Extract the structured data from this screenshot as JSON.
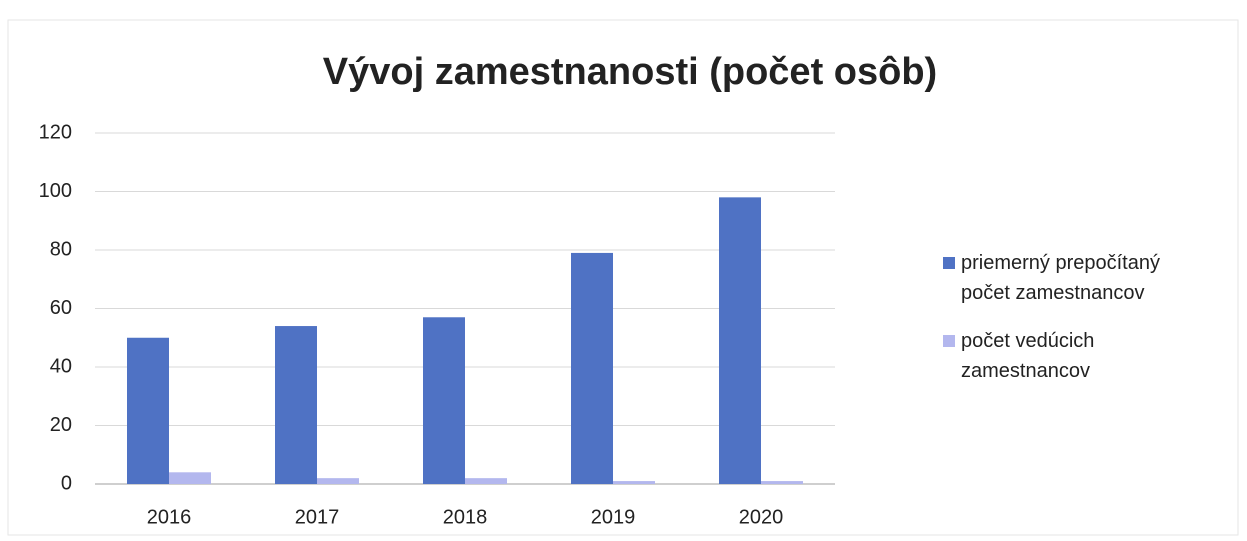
{
  "chart_data": {
    "type": "bar",
    "title": "Vývoj zamestnanosti (počet osôb)",
    "categories": [
      "2016",
      "2017",
      "2018",
      "2019",
      "2020"
    ],
    "series": [
      {
        "name": "priemerný prepočítaný počet zamestnancov",
        "color": "#4f72c4",
        "values": [
          50,
          54,
          57,
          79,
          98
        ]
      },
      {
        "name": "počet vedúcich zamestnancov",
        "color": "#b3b7ee",
        "values": [
          4,
          2,
          2,
          1,
          1
        ]
      }
    ],
    "ylim": [
      0,
      120
    ],
    "yticks": [
      0,
      20,
      40,
      60,
      80,
      100,
      120
    ],
    "grid": true,
    "legend": "right"
  }
}
